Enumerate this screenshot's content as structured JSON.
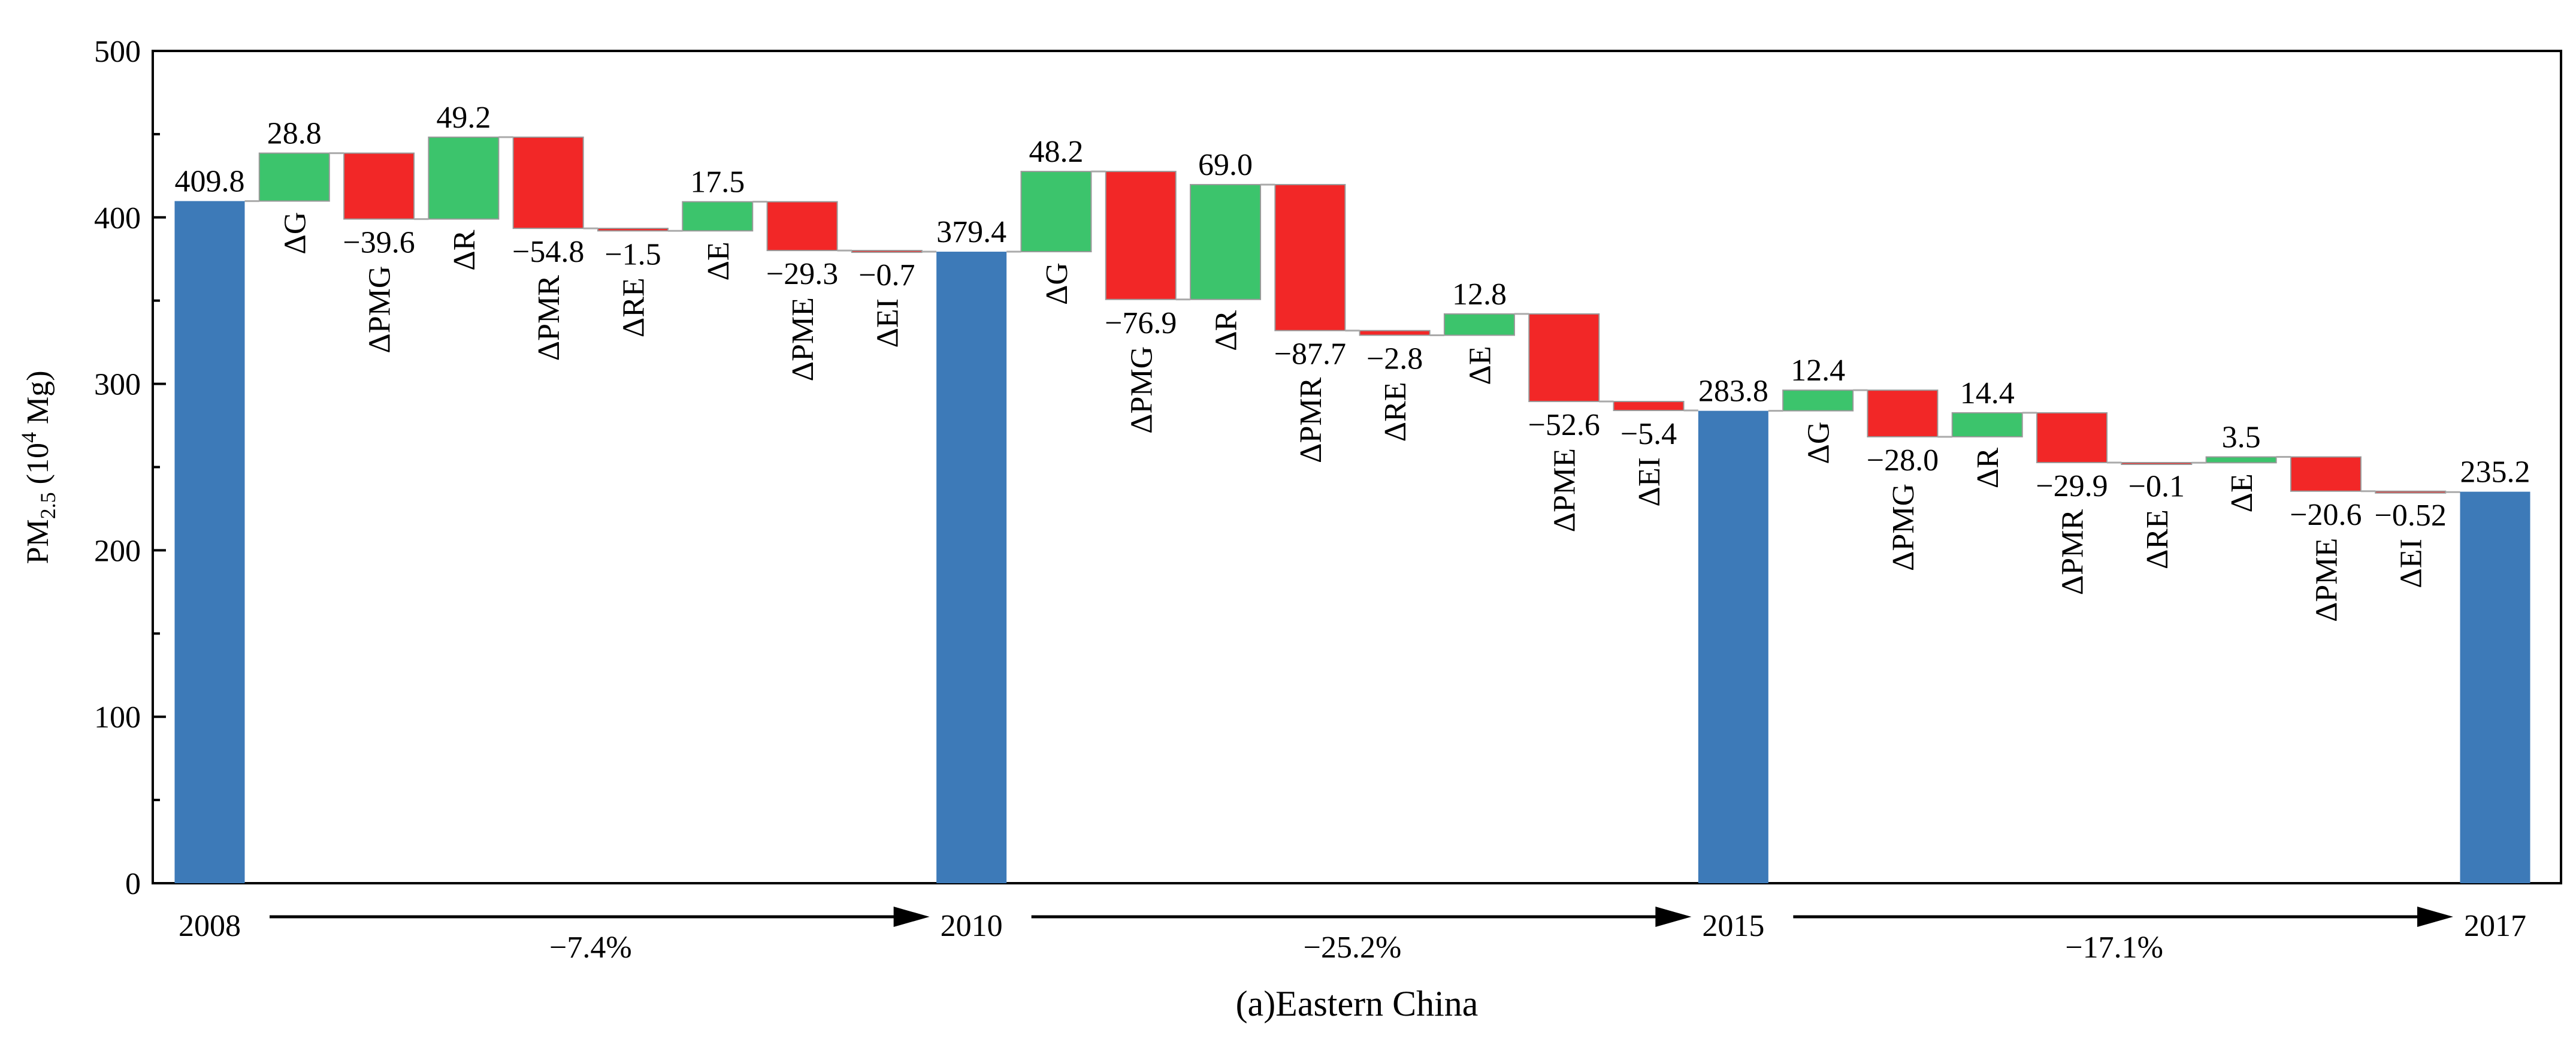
{
  "chart_data": {
    "type": "waterfall",
    "title": "(a)Eastern China",
    "ylabel": {
      "main": "PM",
      "sub": "2.5",
      "unit_open": " (10",
      "unit_sup": "4",
      "unit_close": " Mg)"
    },
    "ylim": [
      0,
      500
    ],
    "yticks": [
      "0",
      "100",
      "200",
      "300",
      "400",
      "500"
    ],
    "colors": {
      "total": "#3d7ab8",
      "increase": "#3cc46c",
      "decrease": "#f22727",
      "connector": "#aaaaaa"
    },
    "items": [
      {
        "kind": "total",
        "label": "2008",
        "value": 409.8,
        "text": "409.8"
      },
      {
        "kind": "delta",
        "label": "ΔG",
        "value": 28.8,
        "text": "28.8"
      },
      {
        "kind": "delta",
        "label": "ΔPMG",
        "value": -39.6,
        "text": "−39.6"
      },
      {
        "kind": "delta",
        "label": "ΔR",
        "value": 49.2,
        "text": "49.2"
      },
      {
        "kind": "delta",
        "label": "ΔPMR",
        "value": -54.8,
        "text": "−54.8"
      },
      {
        "kind": "delta",
        "label": "ΔRE",
        "value": -1.5,
        "text": "−1.5"
      },
      {
        "kind": "delta",
        "label": "ΔE",
        "value": 17.5,
        "text": "17.5"
      },
      {
        "kind": "delta",
        "label": "ΔPME",
        "value": -29.3,
        "text": "−29.3"
      },
      {
        "kind": "delta",
        "label": "ΔEI",
        "value": -0.7,
        "text": "−0.7"
      },
      {
        "kind": "total",
        "label": "2010",
        "value": 379.4,
        "text": "379.4"
      },
      {
        "kind": "delta",
        "label": "ΔG",
        "value": 48.2,
        "text": "48.2"
      },
      {
        "kind": "delta",
        "label": "ΔPMG",
        "value": -76.9,
        "text": "−76.9"
      },
      {
        "kind": "delta",
        "label": "ΔR",
        "value": 69.0,
        "text": "69.0"
      },
      {
        "kind": "delta",
        "label": "ΔPMR",
        "value": -87.7,
        "text": "−87.7"
      },
      {
        "kind": "delta",
        "label": "ΔRE",
        "value": -2.8,
        "text": "−2.8"
      },
      {
        "kind": "delta",
        "label": "ΔE",
        "value": 12.8,
        "text": "12.8"
      },
      {
        "kind": "delta",
        "label": "ΔPME",
        "value": -52.6,
        "text": "−52.6"
      },
      {
        "kind": "delta",
        "label": "ΔEI",
        "value": -5.4,
        "text": "−5.4"
      },
      {
        "kind": "total",
        "label": "2015",
        "value": 283.8,
        "text": "283.8"
      },
      {
        "kind": "delta",
        "label": "ΔG",
        "value": 12.4,
        "text": "12.4"
      },
      {
        "kind": "delta",
        "label": "ΔPMG",
        "value": -28.0,
        "text": "−28.0"
      },
      {
        "kind": "delta",
        "label": "ΔR",
        "value": 14.4,
        "text": "14.4"
      },
      {
        "kind": "delta",
        "label": "ΔPMR",
        "value": -29.9,
        "text": "−29.9"
      },
      {
        "kind": "delta",
        "label": "ΔRE",
        "value": -0.1,
        "text": "−0.1"
      },
      {
        "kind": "delta",
        "label": "ΔE",
        "value": 3.5,
        "text": "3.5"
      },
      {
        "kind": "delta",
        "label": "ΔPME",
        "value": -20.6,
        "text": "−20.6"
      },
      {
        "kind": "delta",
        "label": "ΔEI",
        "value": -0.52,
        "text": "−0.52"
      },
      {
        "kind": "total",
        "label": "2017",
        "value": 235.2,
        "text": "235.2"
      }
    ],
    "period_changes": [
      {
        "from": "2008",
        "to": "2010",
        "text": "−7.4%"
      },
      {
        "from": "2010",
        "to": "2015",
        "text": "−25.2%"
      },
      {
        "from": "2015",
        "to": "2017",
        "text": "−17.1%"
      }
    ]
  }
}
